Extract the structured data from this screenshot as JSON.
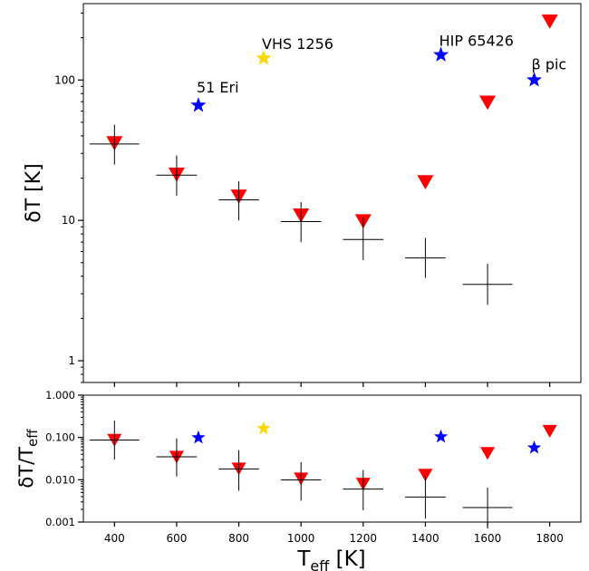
{
  "chart_data": [
    {
      "type": "scatter",
      "ylabel": "δT [K]",
      "xlim": [
        300,
        1900
      ],
      "ylim": [
        0.7,
        350
      ],
      "yscale": "log",
      "yticks": [
        1,
        10,
        100
      ],
      "ytick_labels": [
        "1",
        "10",
        "100"
      ],
      "series": [
        {
          "marker": "triangle-down",
          "color": "#ff0000",
          "points": [
            {
              "x": 400,
              "y": 36
            },
            {
              "x": 600,
              "y": 21.5
            },
            {
              "x": 800,
              "y": 15
            },
            {
              "x": 1000,
              "y": 11
            },
            {
              "x": 1200,
              "y": 10
            },
            {
              "x": 1400,
              "y": 19
            },
            {
              "x": 1600,
              "y": 70
            },
            {
              "x": 1800,
              "y": 265
            }
          ]
        },
        {
          "marker": "cross",
          "color": "#000000",
          "points": [
            {
              "x": 400,
              "y": 35,
              "xerr": 80,
              "ylo": 25,
              "yhi": 48
            },
            {
              "x": 600,
              "y": 21,
              "xerr": 65,
              "ylo": 15,
              "yhi": 29
            },
            {
              "x": 800,
              "y": 14,
              "xerr": 65,
              "ylo": 10,
              "yhi": 19
            },
            {
              "x": 1000,
              "y": 9.8,
              "xerr": 65,
              "ylo": 7,
              "yhi": 13.5
            },
            {
              "x": 1200,
              "y": 7.3,
              "xerr": 65,
              "ylo": 5.2,
              "yhi": 10.5
            },
            {
              "x": 1400,
              "y": 5.4,
              "xerr": 65,
              "ylo": 3.9,
              "yhi": 7.5
            },
            {
              "x": 1600,
              "y": 3.5,
              "xerr": 80,
              "ylo": 2.5,
              "yhi": 4.9
            }
          ]
        },
        {
          "marker": "star",
          "color": "#0000ff",
          "points": [
            {
              "x": 670,
              "y": 66,
              "label": "51 Eri"
            },
            {
              "x": 1450,
              "y": 151,
              "label": "HIP 65426"
            },
            {
              "x": 1750,
              "y": 100,
              "label": "β pic"
            }
          ]
        },
        {
          "marker": "star",
          "color": "#ffd700",
          "points": [
            {
              "x": 880,
              "y": 143,
              "label": "VHS 1256"
            }
          ]
        }
      ]
    },
    {
      "type": "scatter",
      "xlabel": "T_eff [K]",
      "ylabel": "δT/T_eff",
      "xlim": [
        300,
        1900
      ],
      "ylim": [
        0.001,
        1.0
      ],
      "yscale": "log",
      "xticks": [
        400,
        600,
        800,
        1000,
        1200,
        1400,
        1600,
        1800
      ],
      "yticks": [
        0.001,
        0.01,
        0.1,
        1.0
      ],
      "ytick_labels": [
        "0.001",
        "0.010",
        "0.100",
        "1.000"
      ],
      "series": [
        {
          "marker": "triangle-down",
          "color": "#ff0000",
          "points": [
            {
              "x": 400,
              "y": 0.09
            },
            {
              "x": 600,
              "y": 0.036
            },
            {
              "x": 800,
              "y": 0.019
            },
            {
              "x": 1000,
              "y": 0.011
            },
            {
              "x": 1200,
              "y": 0.0083
            },
            {
              "x": 1400,
              "y": 0.0135
            },
            {
              "x": 1600,
              "y": 0.044
            },
            {
              "x": 1800,
              "y": 0.147
            }
          ]
        },
        {
          "marker": "cross",
          "color": "#000000",
          "points": [
            {
              "x": 400,
              "y": 0.087,
              "xerr": 80,
              "ylo": 0.03,
              "yhi": 0.25
            },
            {
              "x": 600,
              "y": 0.035,
              "xerr": 65,
              "ylo": 0.012,
              "yhi": 0.095
            },
            {
              "x": 800,
              "y": 0.018,
              "xerr": 65,
              "ylo": 0.0055,
              "yhi": 0.05
            },
            {
              "x": 1000,
              "y": 0.0099,
              "xerr": 65,
              "ylo": 0.0032,
              "yhi": 0.026
            },
            {
              "x": 1200,
              "y": 0.006,
              "xerr": 65,
              "ylo": 0.0019,
              "yhi": 0.017
            },
            {
              "x": 1400,
              "y": 0.0039,
              "xerr": 65,
              "ylo": 0.0012,
              "yhi": 0.012
            },
            {
              "x": 1600,
              "y": 0.0022,
              "xerr": 80,
              "ylo": 0.0007,
              "yhi": 0.0065
            }
          ]
        },
        {
          "marker": "star",
          "color": "#0000ff",
          "points": [
            {
              "x": 670,
              "y": 0.099
            },
            {
              "x": 1450,
              "y": 0.104
            },
            {
              "x": 1750,
              "y": 0.057
            }
          ]
        },
        {
          "marker": "star",
          "color": "#ffd700",
          "points": [
            {
              "x": 880,
              "y": 0.163
            }
          ]
        }
      ]
    }
  ]
}
